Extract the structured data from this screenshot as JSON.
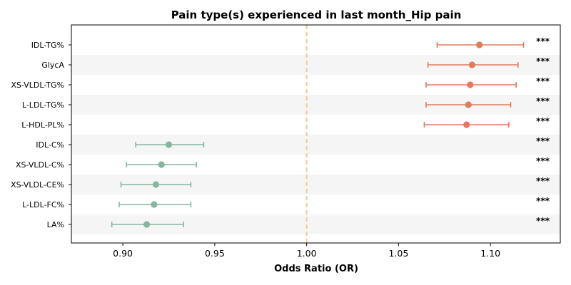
{
  "chart_data": {
    "type": "forest",
    "title": "Pain type(s) experienced in last month_Hip pain",
    "xlabel": "Odds Ratio (OR)",
    "xlim": [
      0.872,
      1.138
    ],
    "xticks": [
      0.9,
      0.95,
      1.0,
      1.05,
      1.1
    ],
    "xtick_labels": [
      "0.90",
      "0.95",
      "1.00",
      "1.05",
      "1.10"
    ],
    "reference_line": 1.0,
    "colors": {
      "positive": "#e07b5f",
      "negative": "#86b6a0",
      "reference": "#f0cb8c",
      "band": "#f5f5f5"
    },
    "items": [
      {
        "label": "IDL-TG%",
        "or": 1.094,
        "lo": 1.071,
        "hi": 1.118,
        "sig": "***"
      },
      {
        "label": "GlycA",
        "or": 1.09,
        "lo": 1.066,
        "hi": 1.115,
        "sig": "***"
      },
      {
        "label": "XS-VLDL-TG%",
        "or": 1.089,
        "lo": 1.065,
        "hi": 1.114,
        "sig": "***"
      },
      {
        "label": "L-LDL-TG%",
        "or": 1.088,
        "lo": 1.065,
        "hi": 1.111,
        "sig": "***"
      },
      {
        "label": "L-HDL-PL%",
        "or": 1.087,
        "lo": 1.064,
        "hi": 1.11,
        "sig": "***"
      },
      {
        "label": "IDL-C%",
        "or": 0.925,
        "lo": 0.907,
        "hi": 0.944,
        "sig": "***"
      },
      {
        "label": "XS-VLDL-C%",
        "or": 0.921,
        "lo": 0.902,
        "hi": 0.94,
        "sig": "***"
      },
      {
        "label": "XS-VLDL-CE%",
        "or": 0.918,
        "lo": 0.899,
        "hi": 0.937,
        "sig": "***"
      },
      {
        "label": "L-LDL-FC%",
        "or": 0.917,
        "lo": 0.898,
        "hi": 0.937,
        "sig": "***"
      },
      {
        "label": "LA%",
        "or": 0.913,
        "lo": 0.894,
        "hi": 0.933,
        "sig": "***"
      }
    ]
  }
}
